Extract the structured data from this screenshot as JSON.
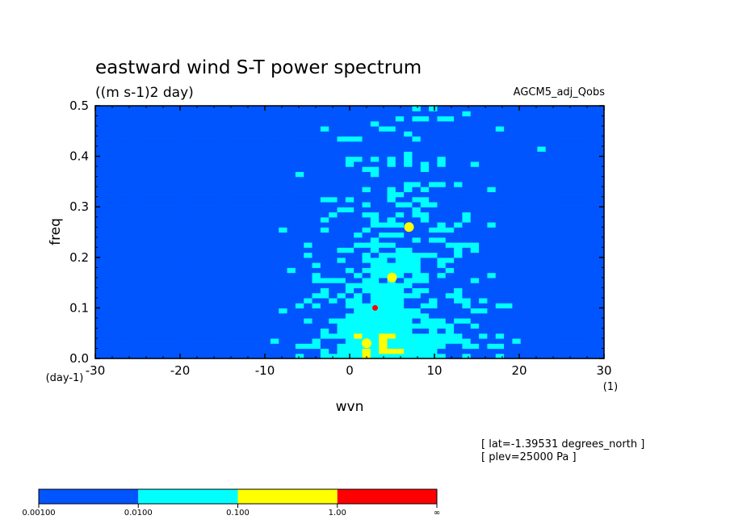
{
  "chart_data": {
    "type": "heatmap",
    "title": "eastward wind S-T power spectrum",
    "subtitle": "((m s-1)2 day)",
    "dataset_label": "AGCM5_adj_Qobs",
    "xlabel": "wvn",
    "ylabel": "freq",
    "x_unit": "(1)",
    "y_unit": "(day-1)",
    "xlim": [
      -30,
      30
    ],
    "ylim": [
      0,
      0.5
    ],
    "x_ticks": [
      "-30",
      "-20",
      "-10",
      "0",
      "10",
      "20",
      "30"
    ],
    "y_ticks": [
      "0.0",
      "0.1",
      "0.2",
      "0.3",
      "0.4",
      "0.5"
    ],
    "grid": false,
    "info": [
      "[ lat=-1.39531 degrees_north ]",
      "[ plev=25000 Pa ]"
    ],
    "colorbar": {
      "levels": [
        "0.00100",
        "0.0100",
        "0.100",
        "1.00",
        "∞"
      ],
      "colors": [
        "#0055ff",
        "#00ffff",
        "#ffff00",
        "#ff0000"
      ]
    },
    "background_color": "#ffffff",
    "notable_points": [
      {
        "x": 3,
        "y": 0.1,
        "level": "red"
      },
      {
        "x": 7,
        "y": 0.26,
        "level": "yellow"
      },
      {
        "x": 5,
        "y": 0.16,
        "level": "yellow"
      },
      {
        "x": 2,
        "y": 0.03,
        "level": "yellow"
      }
    ]
  }
}
